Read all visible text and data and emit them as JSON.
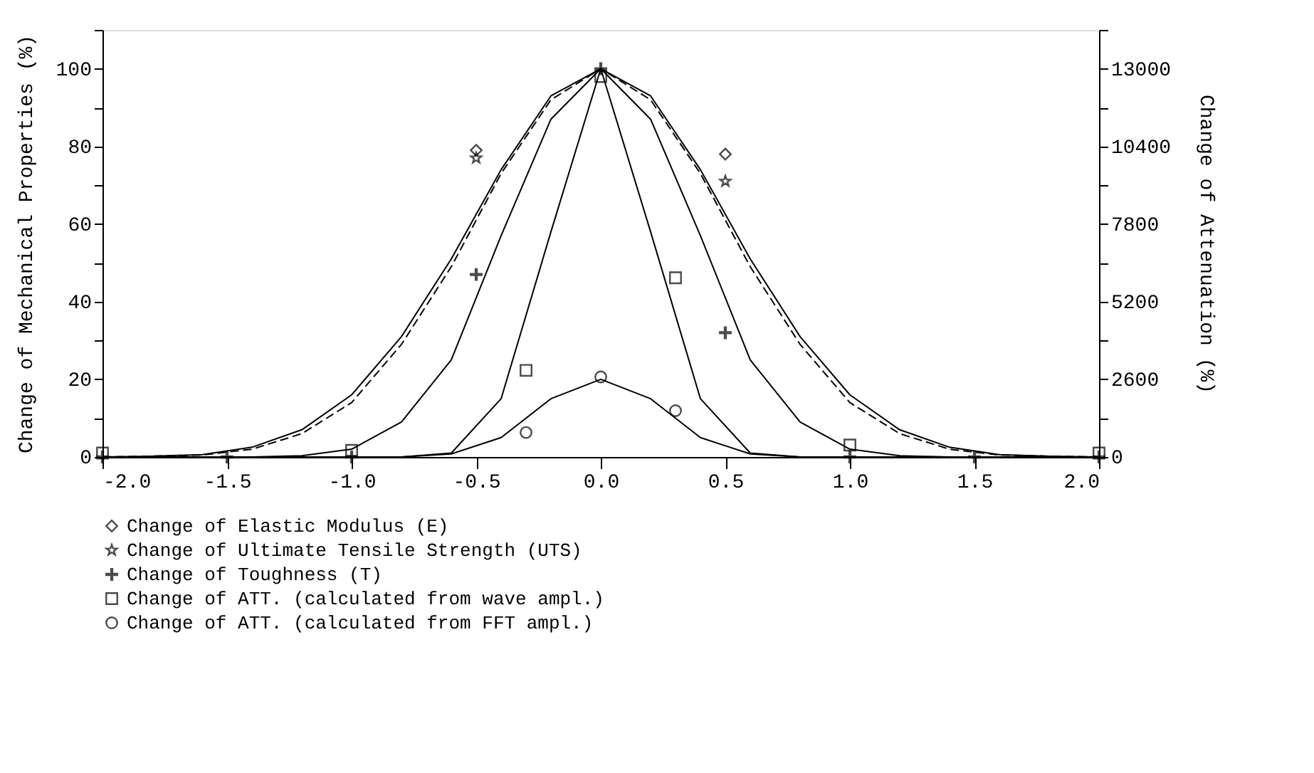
{
  "chart_data": {
    "type": "line",
    "ylabel": "Change of Mechanical Properties (%)",
    "y2label": "Change of Attenuation (%)",
    "x": [
      -2.0,
      -1.8,
      -1.6,
      -1.4,
      -1.2,
      -1.0,
      -0.8,
      -0.6,
      -0.4,
      -0.2,
      0.0,
      0.2,
      0.4,
      0.6,
      0.8,
      1.0,
      1.2,
      1.4,
      1.6,
      1.8,
      2.0
    ],
    "xlim": [
      -2.0,
      2.0
    ],
    "xticks": [
      {
        "value": -2.0,
        "label": "-2.0"
      },
      {
        "value": -1.5,
        "label": "-1.5"
      },
      {
        "value": -1.0,
        "label": "-1.0"
      },
      {
        "value": -0.5,
        "label": "-0.5"
      },
      {
        "value": 0,
        "label": "0.0"
      },
      {
        "value": 0.5,
        "label": "0.5"
      },
      {
        "value": 1.0,
        "label": "1.0"
      },
      {
        "value": 1.5,
        "label": "1.5"
      },
      {
        "value": 2.0,
        "label": "2.0"
      }
    ],
    "ylim": [
      0,
      110
    ],
    "yticks": [
      0,
      {
        "value": 10,
        "label": null
      },
      20,
      {
        "value": 30,
        "label": null
      },
      40,
      {
        "value": 50,
        "label": null
      },
      60,
      {
        "value": 70,
        "label": null
      },
      80,
      {
        "value": 90,
        "label": null
      },
      100,
      {
        "value": 110,
        "label": null
      }
    ],
    "y2lim": [
      0,
      14300
    ],
    "y2ticks": [
      0,
      {
        "value": 1300,
        "label": null
      },
      2600,
      {
        "value": 3900,
        "label": null
      },
      5200,
      {
        "value": 6500,
        "label": null
      },
      7800,
      {
        "value": 9100,
        "label": null
      },
      10400,
      {
        "value": 11700,
        "label": null
      },
      13000,
      {
        "value": 14300,
        "label": null
      }
    ],
    "grid": false,
    "legend": "bottom",
    "series": [
      {
        "color": "#000000",
        "line_style": "solid",
        "marker": "none",
        "values": [
          0,
          0.2,
          0.6,
          2.5,
          7,
          16,
          31,
          51,
          74,
          93,
          100,
          93,
          74,
          51,
          31,
          16,
          7,
          2.5,
          0.6,
          0.2,
          0
        ]
      },
      {
        "color": "#000000",
        "line_style": "dashed",
        "marker": "none",
        "values": [
          0,
          0.2,
          0.5,
          2,
          6,
          14,
          29,
          49,
          73,
          92,
          100,
          92,
          73,
          49,
          29,
          14,
          6,
          2,
          0.5,
          0.2,
          0
        ]
      },
      {
        "color": "#000000",
        "line_style": "solid",
        "marker": "none",
        "values": [
          0,
          0,
          0,
          0,
          0.3,
          2,
          9,
          25,
          57,
          87,
          100,
          87,
          57,
          25,
          9,
          2,
          0.3,
          0,
          0,
          0,
          0
        ]
      },
      {
        "color": "#000000",
        "line_style": "solid",
        "marker": "none",
        "axis": "y2",
        "values": [
          0,
          0,
          0,
          0,
          0,
          0,
          0,
          130,
          1950,
          7540,
          13000,
          7540,
          1950,
          130,
          0,
          0,
          0,
          0,
          0,
          0,
          0
        ]
      },
      {
        "color": "#000000",
        "line_style": "solid",
        "marker": "none",
        "axis": "y2",
        "values": [
          0,
          0,
          0,
          0,
          0,
          0,
          0,
          100,
          650,
          1950,
          2600,
          1950,
          650,
          100,
          0,
          0,
          0,
          0,
          0,
          0,
          0
        ]
      },
      {
        "type": "scatter",
        "name": "Change of Elastic Modulus (E)",
        "color": "#000000",
        "marker": "diamond",
        "x": [
          -0.5,
          0.5
        ],
        "values": [
          79,
          78
        ]
      },
      {
        "type": "scatter",
        "name": "Change of Ultimate Tensile Strength (UTS)",
        "color": "#000000",
        "marker": "star",
        "x": [
          -0.5,
          0.5
        ],
        "values": [
          77,
          71
        ]
      },
      {
        "type": "scatter",
        "name": "Change of Toughness (T)",
        "color": "#000000",
        "marker": "cross",
        "x": [
          -2.0,
          -1.5,
          -1.0,
          -0.5,
          0,
          0.5,
          1.0,
          1.5,
          2.0
        ],
        "values": [
          0,
          0,
          0,
          47,
          100,
          32,
          0,
          0,
          0
        ]
      },
      {
        "type": "scatter",
        "name": "Change of ATT. (calculated from wave ampl.)",
        "color": "#000000",
        "marker": "square",
        "axis": "y2",
        "x": [
          -2.0,
          -1.0,
          -0.3,
          0,
          0.3,
          1.0,
          2.0
        ],
        "values": [
          130,
          220,
          2900,
          12740,
          6000,
          400,
          130
        ]
      },
      {
        "type": "scatter",
        "name": "Change of ATT. (calculated from FFT ampl.)",
        "color": "#000000",
        "marker": "circle",
        "axis": "y2",
        "x": [
          -0.3,
          0,
          0.3
        ],
        "values": [
          820,
          2680,
          1550
        ]
      }
    ]
  }
}
